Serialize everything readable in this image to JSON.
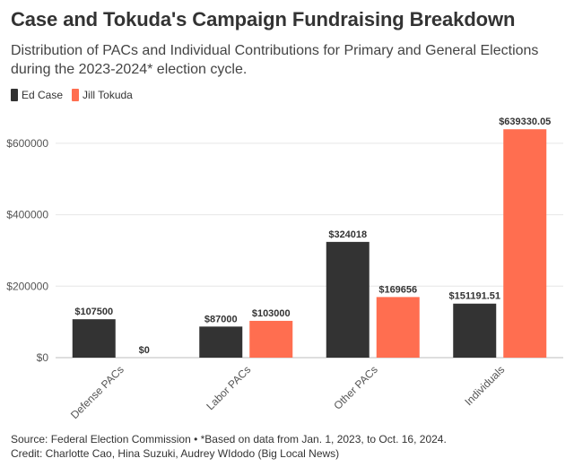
{
  "header": {
    "title": "Case and Tokuda's Campaign Fundraising Breakdown",
    "subtitle": "Distribution of PACs and Individual Contributions for Primary and General Elections during the 2023-2024* election cycle."
  },
  "legend": {
    "items": [
      {
        "label": "Ed Case",
        "color": "#333333"
      },
      {
        "label": "Jill Tokuda",
        "color": "#ff6e50"
      }
    ]
  },
  "chart_data": {
    "type": "bar",
    "categories": [
      "Defense PACs",
      "Labor PACs",
      "Other PACs",
      "Individuals"
    ],
    "series": [
      {
        "name": "Ed Case",
        "color": "#333333",
        "values": [
          107500,
          87000,
          324018,
          151191.51
        ],
        "labels": [
          "$107500",
          "$87000",
          "$324018",
          "$151191.51"
        ]
      },
      {
        "name": "Jill Tokuda",
        "color": "#ff6e50",
        "values": [
          0,
          103000,
          169656,
          639330.05
        ],
        "labels": [
          "$0",
          "$103000",
          "$169656",
          "$639330.05"
        ]
      }
    ],
    "ylim": [
      0,
      680000
    ],
    "yticks": [
      0,
      200000,
      400000,
      600000
    ],
    "ytick_labels": [
      "$0",
      "$200000",
      "$400000",
      "$600000"
    ],
    "grid": true,
    "legend": "top-left"
  },
  "footer": {
    "source": "Source: Federal Election Commission • *Based on data from Jan. 1, 2023, to Oct. 16, 2024.",
    "credit": "Credit: Charlotte Cao, Hina Suzuki, Audrey WIdodo (Big Local News)"
  }
}
